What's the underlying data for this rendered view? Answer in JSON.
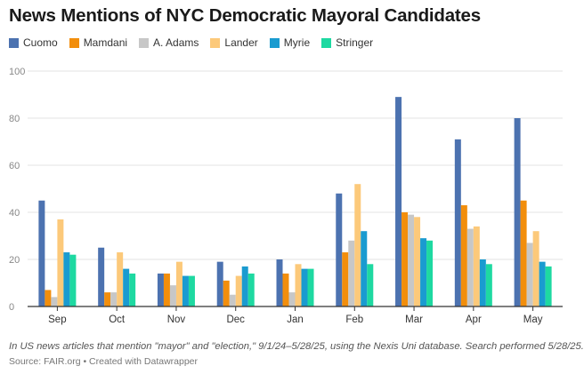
{
  "title": "News Mentions of NYC Democratic Mayoral Candidates",
  "notes": "In US news articles that mention \"mayor\" and \"election,\" 9/1/24–5/28/25, using the Nexis Uni database. Search performed 5/28/25.",
  "source": "Source: FAIR.org • Created with Datawrapper",
  "chart_data": {
    "type": "bar",
    "title": "News Mentions of NYC Democratic Mayoral Candidates",
    "xlabel": "",
    "ylabel": "",
    "ylim": [
      0,
      100
    ],
    "yticks": [
      0,
      20,
      40,
      60,
      80,
      100
    ],
    "grid": true,
    "legend_position": "top-left",
    "categories": [
      "Sep",
      "Oct",
      "Nov",
      "Dec",
      "Jan",
      "Feb",
      "Mar",
      "Apr",
      "May"
    ],
    "series": [
      {
        "name": "Cuomo",
        "color": "#4c72b0",
        "values": [
          45,
          25,
          14,
          19,
          20,
          48,
          89,
          71,
          80
        ]
      },
      {
        "name": "Mamdani",
        "color": "#f28e0c",
        "values": [
          7,
          6,
          14,
          11,
          14,
          23,
          40,
          43,
          45
        ]
      },
      {
        "name": "A. Adams",
        "color": "#c7c7c7",
        "values": [
          4,
          6,
          9,
          5,
          6,
          28,
          39,
          33,
          27
        ]
      },
      {
        "name": "Lander",
        "color": "#fcc97a",
        "values": [
          37,
          23,
          19,
          13,
          18,
          52,
          38,
          34,
          32
        ]
      },
      {
        "name": "Myrie",
        "color": "#1a9bd0",
        "values": [
          23,
          16,
          13,
          17,
          16,
          32,
          29,
          20,
          19
        ]
      },
      {
        "name": "Stringer",
        "color": "#1ed9a1",
        "values": [
          22,
          14,
          13,
          14,
          16,
          18,
          28,
          18,
          17
        ]
      }
    ]
  }
}
